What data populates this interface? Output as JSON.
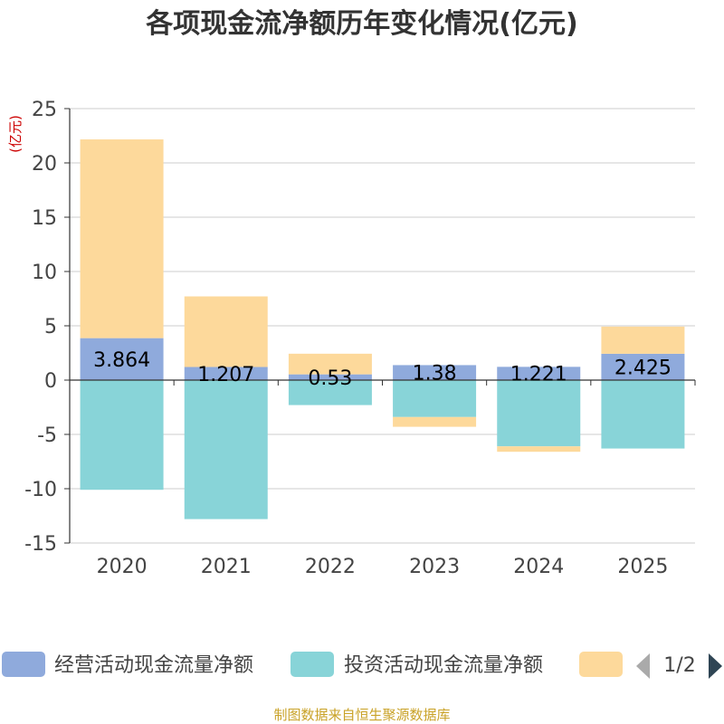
{
  "chart_data": {
    "type": "bar",
    "stacked": true,
    "title": "各项现金流净额历年变化情况(亿元)",
    "ylabel": "(亿元)",
    "xlabel": "",
    "ylim": [
      -15,
      25
    ],
    "yticks": [
      25,
      20,
      15,
      10,
      5,
      0,
      -5,
      -10,
      -15
    ],
    "grid": true,
    "legend_position": "bottom",
    "categories": [
      "2020",
      "2021",
      "2022",
      "2023",
      "2024",
      "2025"
    ],
    "series": [
      {
        "name": "经营活动现金流量净额",
        "color": "#8faadc",
        "values": [
          3.864,
          1.207,
          0.53,
          1.38,
          1.221,
          2.425
        ],
        "labels": [
          "3.864",
          "1.207",
          "0.53",
          "1.38",
          "1.221",
          "2.425"
        ]
      },
      {
        "name": "投资活动现金流量净额",
        "color": "#88d4d8",
        "values": [
          -10.1,
          -12.8,
          -2.3,
          -3.4,
          -6.1,
          -6.3
        ]
      },
      {
        "name": "",
        "color": "#fdd99b",
        "values": [
          18.3,
          6.5,
          1.9,
          -0.9,
          -0.5,
          2.5
        ]
      }
    ]
  },
  "legend": {
    "pager": "1/2"
  },
  "footer": {
    "source": "制图数据来自恒生聚源数据库"
  }
}
